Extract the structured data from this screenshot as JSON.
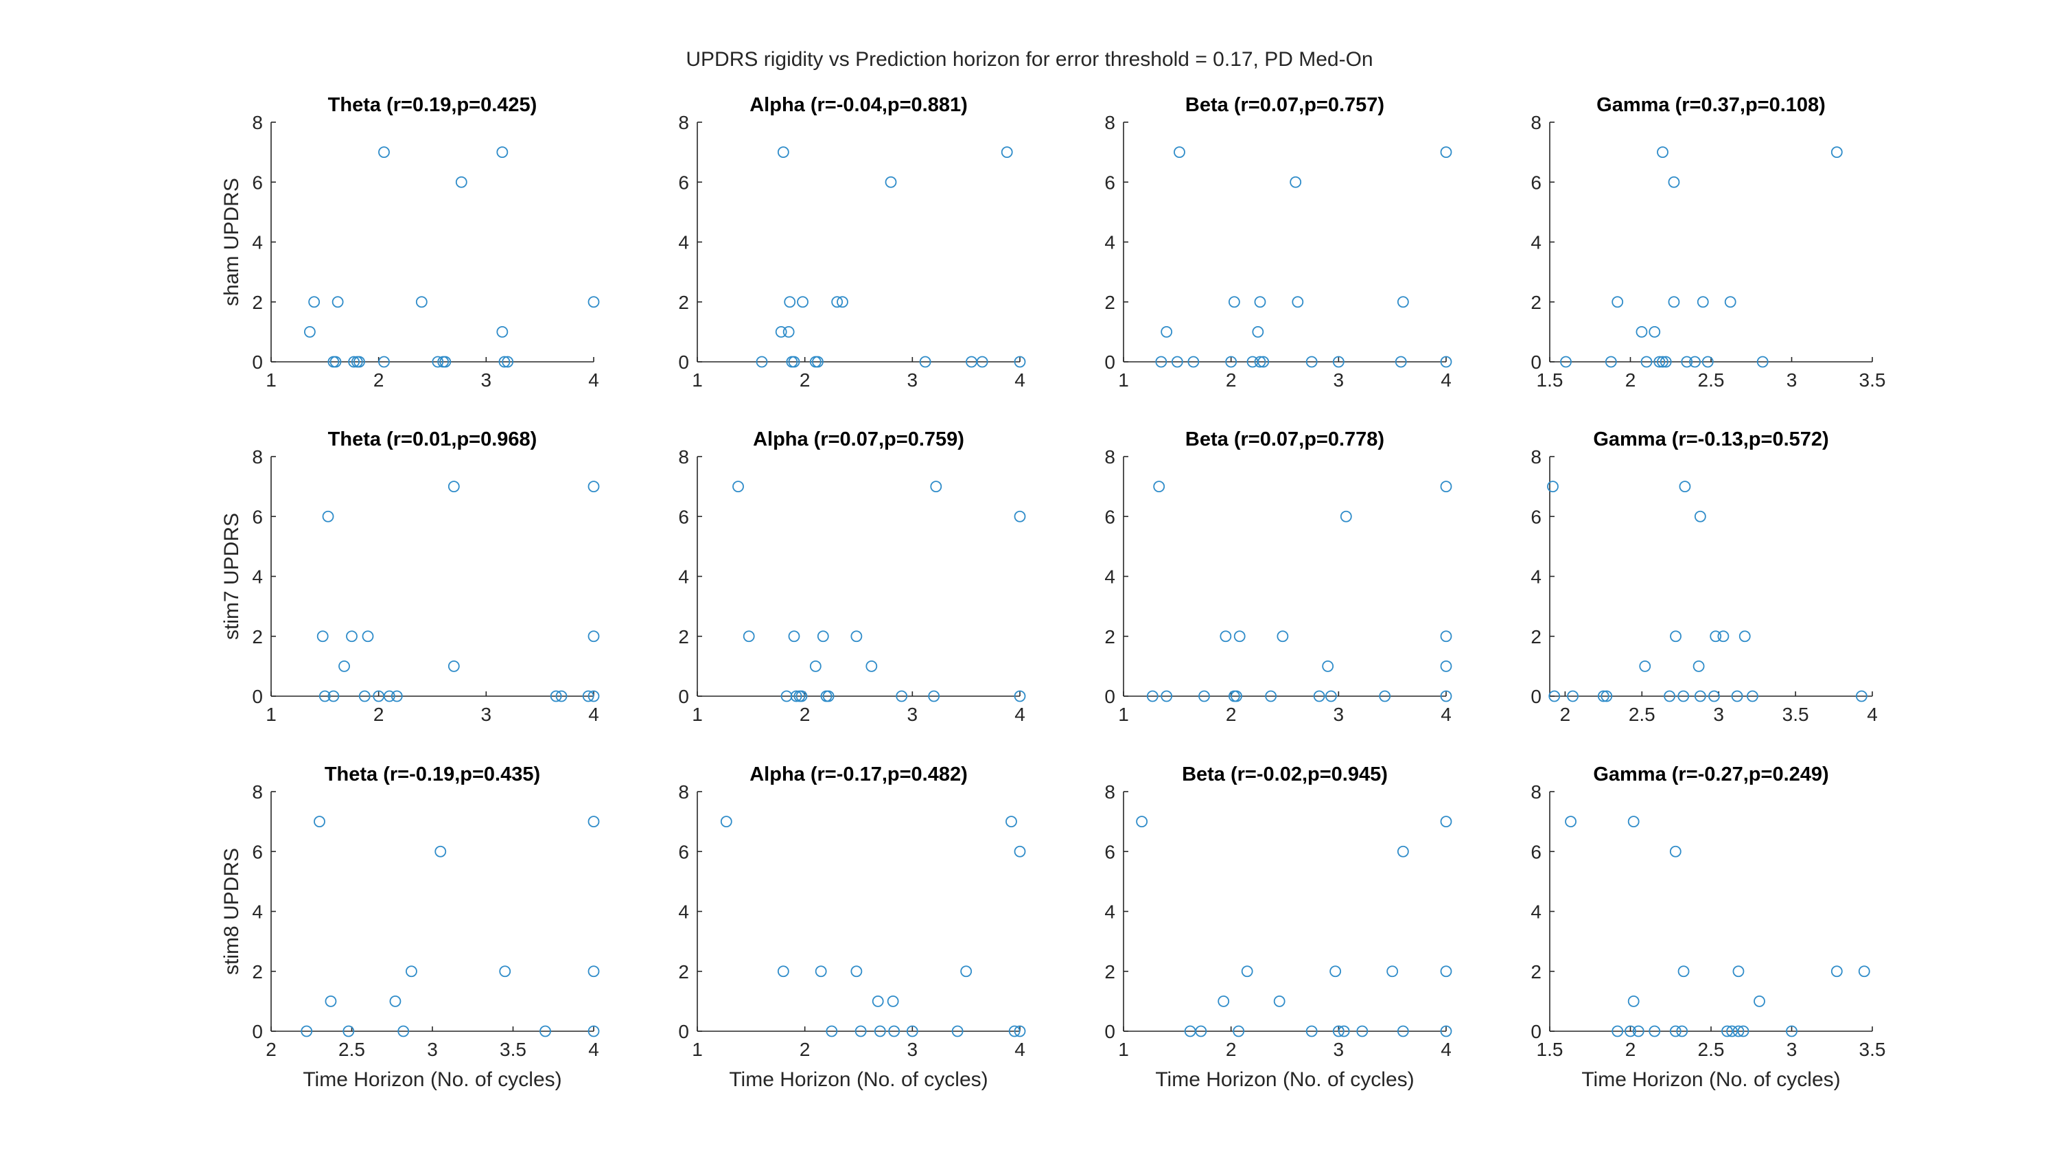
{
  "figure_title": "UPDRS rigidity vs Prediction horizon for error threshold = 0.17, PD Med-On",
  "colors": {
    "marker": "#2f8cc9",
    "axis": "#262626"
  },
  "chart_data": [
    {
      "type": "scatter",
      "title": "Theta (r=0.19,p=0.425)",
      "ylabel": "sham UPDRS",
      "xlabel": "",
      "xlim": [
        1,
        4
      ],
      "ylim": [
        0,
        8
      ],
      "xticks": [
        "1",
        "2",
        "3",
        "4"
      ],
      "yticks": [
        "0",
        "2",
        "4",
        "6",
        "8"
      ],
      "points": [
        [
          1.36,
          1
        ],
        [
          1.4,
          2
        ],
        [
          1.58,
          0
        ],
        [
          1.6,
          0
        ],
        [
          1.62,
          2
        ],
        [
          1.77,
          0
        ],
        [
          1.8,
          0
        ],
        [
          1.82,
          0
        ],
        [
          2.05,
          7
        ],
        [
          2.05,
          0
        ],
        [
          2.4,
          2
        ],
        [
          2.55,
          0
        ],
        [
          2.6,
          0
        ],
        [
          2.62,
          0
        ],
        [
          2.77,
          6
        ],
        [
          3.15,
          7
        ],
        [
          3.15,
          1
        ],
        [
          3.17,
          0
        ],
        [
          3.2,
          0
        ],
        [
          4.0,
          2
        ]
      ]
    },
    {
      "type": "scatter",
      "title": "Alpha (r=-0.04,p=0.881)",
      "ylabel": "",
      "xlabel": "",
      "xlim": [
        1,
        4
      ],
      "ylim": [
        0,
        8
      ],
      "xticks": [
        "1",
        "2",
        "3",
        "4"
      ],
      "yticks": [
        "0",
        "2",
        "4",
        "6",
        "8"
      ],
      "points": [
        [
          1.6,
          0
        ],
        [
          1.78,
          1
        ],
        [
          1.8,
          7
        ],
        [
          1.85,
          1
        ],
        [
          1.86,
          2
        ],
        [
          1.88,
          0
        ],
        [
          1.9,
          0
        ],
        [
          1.98,
          2
        ],
        [
          2.1,
          0
        ],
        [
          2.12,
          0
        ],
        [
          2.3,
          2
        ],
        [
          2.35,
          2
        ],
        [
          2.8,
          6
        ],
        [
          3.12,
          0
        ],
        [
          3.55,
          0
        ],
        [
          3.65,
          0
        ],
        [
          3.88,
          7
        ],
        [
          4.0,
          0
        ]
      ]
    },
    {
      "type": "scatter",
      "title": "Beta (r=0.07,p=0.757)",
      "ylabel": "",
      "xlabel": "",
      "xlim": [
        1,
        4
      ],
      "ylim": [
        0,
        8
      ],
      "xticks": [
        "1",
        "2",
        "3",
        "4"
      ],
      "yticks": [
        "0",
        "2",
        "4",
        "6",
        "8"
      ],
      "points": [
        [
          1.35,
          0
        ],
        [
          1.4,
          1
        ],
        [
          1.5,
          0
        ],
        [
          1.52,
          7
        ],
        [
          1.65,
          0
        ],
        [
          2.0,
          0
        ],
        [
          2.03,
          2
        ],
        [
          2.2,
          0
        ],
        [
          2.25,
          1
        ],
        [
          2.27,
          2
        ],
        [
          2.27,
          0
        ],
        [
          2.3,
          0
        ],
        [
          2.6,
          6
        ],
        [
          2.62,
          2
        ],
        [
          2.75,
          0
        ],
        [
          3.0,
          0
        ],
        [
          3.58,
          0
        ],
        [
          3.6,
          2
        ],
        [
          4.0,
          7
        ],
        [
          4.0,
          0
        ]
      ]
    },
    {
      "type": "scatter",
      "title": "Gamma (r=0.37,p=0.108)",
      "ylabel": "",
      "xlabel": "",
      "xlim": [
        1.5,
        3.5
      ],
      "ylim": [
        0,
        8
      ],
      "xticks": [
        "1.5",
        "2",
        "2.5",
        "3",
        "3.5"
      ],
      "yticks": [
        "0",
        "2",
        "4",
        "6",
        "8"
      ],
      "points": [
        [
          1.6,
          0
        ],
        [
          1.88,
          0
        ],
        [
          1.92,
          2
        ],
        [
          2.07,
          1
        ],
        [
          2.1,
          0
        ],
        [
          2.15,
          1
        ],
        [
          2.18,
          0
        ],
        [
          2.2,
          7
        ],
        [
          2.2,
          0
        ],
        [
          2.22,
          0
        ],
        [
          2.27,
          6
        ],
        [
          2.27,
          2
        ],
        [
          2.35,
          0
        ],
        [
          2.4,
          0
        ],
        [
          2.45,
          2
        ],
        [
          2.48,
          0
        ],
        [
          2.62,
          2
        ],
        [
          2.82,
          0
        ],
        [
          3.28,
          7
        ]
      ]
    },
    {
      "type": "scatter",
      "title": "Theta (r=0.01,p=0.968)",
      "ylabel": "stim7 UPDRS",
      "xlabel": "",
      "xlim": [
        1,
        4
      ],
      "ylim": [
        0,
        8
      ],
      "xticks": [
        "1",
        "2",
        "3",
        "4"
      ],
      "yticks": [
        "0",
        "2",
        "4",
        "6",
        "8"
      ],
      "points": [
        [
          1.48,
          2
        ],
        [
          1.5,
          0
        ],
        [
          1.53,
          6
        ],
        [
          1.58,
          0
        ],
        [
          1.68,
          1
        ],
        [
          1.75,
          2
        ],
        [
          1.87,
          0
        ],
        [
          1.9,
          2
        ],
        [
          2.0,
          0
        ],
        [
          2.1,
          0
        ],
        [
          2.17,
          0
        ],
        [
          2.7,
          7
        ],
        [
          2.7,
          1
        ],
        [
          3.65,
          0
        ],
        [
          3.7,
          0
        ],
        [
          3.95,
          0
        ],
        [
          4.0,
          7
        ],
        [
          4.0,
          2
        ],
        [
          4.0,
          0
        ]
      ]
    },
    {
      "type": "scatter",
      "title": "Alpha (r=0.07,p=0.759)",
      "ylabel": "",
      "xlabel": "",
      "xlim": [
        1,
        4
      ],
      "ylim": [
        0,
        8
      ],
      "xticks": [
        "1",
        "2",
        "3",
        "4"
      ],
      "yticks": [
        "0",
        "2",
        "4",
        "6",
        "8"
      ],
      "points": [
        [
          1.38,
          7
        ],
        [
          1.48,
          2
        ],
        [
          1.83,
          0
        ],
        [
          1.9,
          2
        ],
        [
          1.92,
          0
        ],
        [
          1.95,
          0
        ],
        [
          1.97,
          0
        ],
        [
          2.1,
          1
        ],
        [
          2.17,
          2
        ],
        [
          2.2,
          0
        ],
        [
          2.22,
          0
        ],
        [
          2.48,
          2
        ],
        [
          2.62,
          1
        ],
        [
          2.9,
          0
        ],
        [
          3.2,
          0
        ],
        [
          3.22,
          7
        ],
        [
          4.0,
          6
        ],
        [
          4.0,
          0
        ]
      ]
    },
    {
      "type": "scatter",
      "title": "Beta (r=0.07,p=0.778)",
      "ylabel": "",
      "xlabel": "",
      "xlim": [
        1,
        4
      ],
      "ylim": [
        0,
        8
      ],
      "xticks": [
        "1",
        "2",
        "3",
        "4"
      ],
      "yticks": [
        "0",
        "2",
        "4",
        "6",
        "8"
      ],
      "points": [
        [
          1.27,
          0
        ],
        [
          1.33,
          7
        ],
        [
          1.4,
          0
        ],
        [
          1.75,
          0
        ],
        [
          1.95,
          2
        ],
        [
          2.03,
          0
        ],
        [
          2.05,
          0
        ],
        [
          2.08,
          2
        ],
        [
          2.37,
          0
        ],
        [
          2.48,
          2
        ],
        [
          2.82,
          0
        ],
        [
          2.9,
          1
        ],
        [
          2.93,
          0
        ],
        [
          3.07,
          6
        ],
        [
          3.43,
          0
        ],
        [
          4.0,
          7
        ],
        [
          4.0,
          2
        ],
        [
          4.0,
          1
        ],
        [
          4.0,
          0
        ]
      ]
    },
    {
      "type": "scatter",
      "title": "Gamma (r=-0.13,p=0.572)",
      "ylabel": "",
      "xlabel": "",
      "xlim": [
        1.9,
        4
      ],
      "ylim": [
        0,
        8
      ],
      "xticks": [
        "2",
        "2.5",
        "3",
        "3.5",
        "4"
      ],
      "yticks": [
        "0",
        "2",
        "4",
        "6",
        "8"
      ],
      "points": [
        [
          1.92,
          7
        ],
        [
          1.93,
          0
        ],
        [
          2.05,
          0
        ],
        [
          2.25,
          0
        ],
        [
          2.27,
          0
        ],
        [
          2.52,
          1
        ],
        [
          2.68,
          0
        ],
        [
          2.72,
          2
        ],
        [
          2.77,
          0
        ],
        [
          2.78,
          7
        ],
        [
          2.88,
          6
        ],
        [
          2.87,
          1
        ],
        [
          2.88,
          0
        ],
        [
          2.97,
          0
        ],
        [
          2.98,
          2
        ],
        [
          3.03,
          2
        ],
        [
          3.12,
          0
        ],
        [
          3.17,
          2
        ],
        [
          3.22,
          0
        ],
        [
          3.93,
          0
        ]
      ]
    },
    {
      "type": "scatter",
      "title": "Theta (r=-0.19,p=0.435)",
      "ylabel": "stim8 UPDRS",
      "xlabel": "Time Horizon (No. of cycles)",
      "xlim": [
        2,
        4
      ],
      "ylim": [
        0,
        8
      ],
      "xticks": [
        "2",
        "2.5",
        "3",
        "3.5",
        "4"
      ],
      "yticks": [
        "0",
        "2",
        "4",
        "6",
        "8"
      ],
      "points": [
        [
          2.22,
          0
        ],
        [
          2.3,
          7
        ],
        [
          2.37,
          1
        ],
        [
          2.48,
          0
        ],
        [
          2.77,
          1
        ],
        [
          2.82,
          0
        ],
        [
          2.87,
          2
        ],
        [
          3.05,
          6
        ],
        [
          3.45,
          2
        ],
        [
          3.7,
          0
        ],
        [
          4.0,
          7
        ],
        [
          4.0,
          2
        ],
        [
          4.0,
          0
        ]
      ]
    },
    {
      "type": "scatter",
      "title": "Alpha (r=-0.17,p=0.482)",
      "ylabel": "",
      "xlabel": "Time Horizon (No. of cycles)",
      "xlim": [
        1,
        4
      ],
      "ylim": [
        0,
        8
      ],
      "xticks": [
        "1",
        "2",
        "3",
        "4"
      ],
      "yticks": [
        "0",
        "2",
        "4",
        "6",
        "8"
      ],
      "points": [
        [
          1.27,
          7
        ],
        [
          1.8,
          2
        ],
        [
          2.15,
          2
        ],
        [
          2.25,
          0
        ],
        [
          2.48,
          2
        ],
        [
          2.52,
          0
        ],
        [
          2.68,
          1
        ],
        [
          2.7,
          0
        ],
        [
          2.82,
          1
        ],
        [
          2.83,
          0
        ],
        [
          3.0,
          0
        ],
        [
          3.42,
          0
        ],
        [
          3.5,
          2
        ],
        [
          3.92,
          7
        ],
        [
          3.95,
          0
        ],
        [
          4.0,
          6
        ],
        [
          4.0,
          0
        ]
      ]
    },
    {
      "type": "scatter",
      "title": "Beta (r=-0.02,p=0.945)",
      "ylabel": "",
      "xlabel": "Time Horizon (No. of cycles)",
      "xlim": [
        1,
        4
      ],
      "ylim": [
        0,
        8
      ],
      "xticks": [
        "1",
        "2",
        "3",
        "4"
      ],
      "yticks": [
        "0",
        "2",
        "4",
        "6",
        "8"
      ],
      "points": [
        [
          1.17,
          7
        ],
        [
          1.62,
          0
        ],
        [
          1.72,
          0
        ],
        [
          1.93,
          1
        ],
        [
          2.07,
          0
        ],
        [
          2.15,
          2
        ],
        [
          2.45,
          1
        ],
        [
          2.75,
          0
        ],
        [
          2.97,
          2
        ],
        [
          3.0,
          0
        ],
        [
          3.05,
          0
        ],
        [
          3.22,
          0
        ],
        [
          3.5,
          2
        ],
        [
          3.6,
          6
        ],
        [
          3.6,
          0
        ],
        [
          4.0,
          7
        ],
        [
          4.0,
          2
        ],
        [
          4.0,
          0
        ]
      ]
    },
    {
      "type": "scatter",
      "title": "Gamma (r=-0.27,p=0.249)",
      "ylabel": "",
      "xlabel": "Time Horizon (No. of cycles)",
      "xlim": [
        1.5,
        3.5
      ],
      "ylim": [
        0,
        8
      ],
      "xticks": [
        "1.5",
        "2",
        "2.5",
        "3",
        "3.5"
      ],
      "yticks": [
        "0",
        "2",
        "4",
        "6",
        "8"
      ],
      "points": [
        [
          1.63,
          7
        ],
        [
          1.92,
          0
        ],
        [
          2.0,
          0
        ],
        [
          2.02,
          7
        ],
        [
          2.02,
          1
        ],
        [
          2.05,
          0
        ],
        [
          2.15,
          0
        ],
        [
          2.28,
          6
        ],
        [
          2.28,
          0
        ],
        [
          2.32,
          0
        ],
        [
          2.33,
          2
        ],
        [
          2.6,
          0
        ],
        [
          2.63,
          0
        ],
        [
          2.67,
          2
        ],
        [
          2.67,
          0
        ],
        [
          2.7,
          0
        ],
        [
          2.8,
          1
        ],
        [
          3.0,
          0
        ],
        [
          3.28,
          2
        ],
        [
          3.45,
          2
        ]
      ]
    }
  ]
}
